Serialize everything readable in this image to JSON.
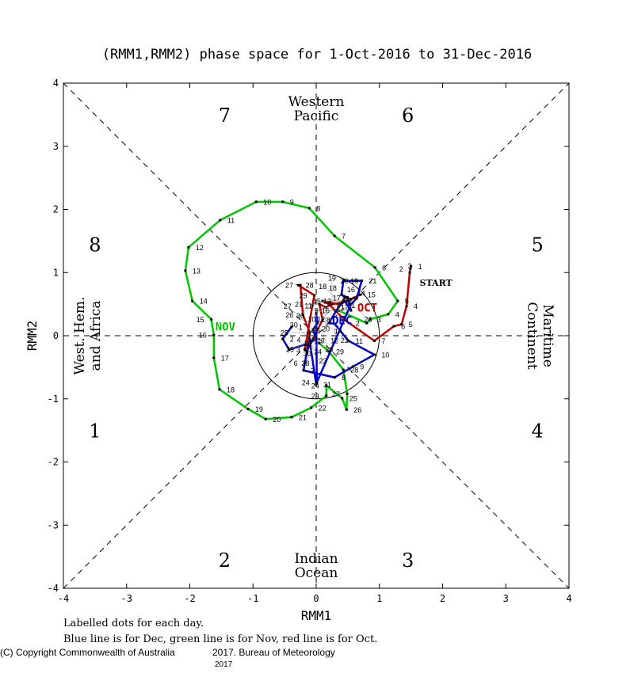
{
  "chart_data": {
    "type": "line",
    "title": "(RMM1,RMM2) phase space for  1-Oct-2016 to 31-Dec-2016",
    "xlabel": "RMM1",
    "ylabel": "RMM2",
    "xlim": [
      -4,
      4
    ],
    "ylim": [
      -4,
      4
    ],
    "ticks": [
      -4,
      -3,
      -2,
      -1,
      0,
      1,
      2,
      3,
      4
    ],
    "tick_labels": [
      "-4",
      "-3",
      "-2",
      "-1",
      "0",
      "1",
      "2",
      "3",
      "4"
    ],
    "phase_labels": {
      "p1": "1",
      "p2": "2",
      "p3": "3",
      "p4": "4",
      "p5": "5",
      "p6": "6",
      "p7": "7",
      "p8": "8"
    },
    "region_labels": {
      "top1": "Western",
      "top2": "Pacific",
      "bottom1": "Indian",
      "bottom2": "Ocean",
      "left1": "West. Hem.",
      "left2": "and Africa",
      "right1": "Maritime",
      "right2": "Continent"
    },
    "start_label": "START",
    "series": [
      {
        "name": "Oct",
        "month_label": "OCT",
        "color": "#c00000",
        "label_at": [
          0.5,
          0.45
        ],
        "points": [
          [
            1.5,
            1.1
          ],
          [
            1.49,
            1.06
          ],
          [
            1.48,
            1.0
          ],
          [
            1.43,
            0.47
          ],
          [
            1.35,
            0.18
          ],
          [
            1.23,
            0.15
          ],
          [
            0.92,
            -0.08
          ],
          [
            0.45,
            0.25
          ],
          [
            0.3,
            0.4
          ],
          [
            0.2,
            0.5
          ],
          [
            0.1,
            0.55
          ],
          [
            0.35,
            0.5
          ],
          [
            0.5,
            0.55
          ],
          [
            0.6,
            0.6
          ],
          [
            0.7,
            0.65
          ],
          [
            0.55,
            0.58
          ],
          [
            0.45,
            0.6
          ],
          [
            0.4,
            0.52
          ],
          [
            0.25,
            0.5
          ],
          [
            0.15,
            0.45
          ],
          [
            0.05,
            0.5
          ],
          [
            0.1,
            0.25
          ],
          [
            -0.05,
            -0.05
          ],
          [
            -0.15,
            -0.25
          ],
          [
            -0.1,
            0.05
          ],
          [
            -0.21,
            0.33
          ],
          [
            -0.25,
            0.8
          ],
          [
            -0.28,
            0.8
          ],
          [
            -0.03,
            0.64
          ],
          [
            -0.06,
            0.48
          ],
          [
            -0.18,
            -0.22
          ]
        ]
      },
      {
        "name": "Nov",
        "month_label": "NOV",
        "color": "#00c800",
        "label_at": [
          -1.75,
          0.15
        ],
        "points": [
          [
            0.35,
            0.4
          ],
          [
            0.8,
            0.2
          ],
          [
            0.85,
            0.26
          ],
          [
            1.14,
            0.34
          ],
          [
            1.29,
            0.55
          ],
          [
            0.93,
            1.08
          ],
          [
            0.29,
            1.58
          ],
          [
            -0.11,
            2.02
          ],
          [
            -0.53,
            2.12
          ],
          [
            -0.95,
            2.12
          ],
          [
            -1.52,
            1.83
          ],
          [
            -2.02,
            1.4
          ],
          [
            -2.07,
            1.03
          ],
          [
            -1.96,
            0.55
          ],
          [
            -1.66,
            0.26
          ],
          [
            -1.62,
            0.01
          ],
          [
            -1.62,
            -0.35
          ],
          [
            -1.53,
            -0.85
          ],
          [
            -1.08,
            -1.16
          ],
          [
            -0.8,
            -1.32
          ],
          [
            -0.39,
            -1.29
          ],
          [
            -0.08,
            -1.14
          ],
          [
            0.16,
            -0.95
          ],
          [
            0.16,
            -0.79
          ],
          [
            0.41,
            -0.99
          ],
          [
            0.48,
            -1.17
          ],
          [
            0.49,
            -0.92
          ],
          [
            0.43,
            -0.54
          ],
          [
            0.2,
            -0.25
          ],
          [
            0.05,
            -0.12
          ]
        ]
      },
      {
        "name": "Dec",
        "month_label": "DEC",
        "color": "#0000c8",
        "label_at": [
          0.1,
          0.25
        ],
        "points": [
          [
            -0.39,
            0.14
          ],
          [
            -0.53,
            -0.05
          ],
          [
            -0.43,
            -0.22
          ],
          [
            -0.18,
            -0.14
          ],
          [
            -0.12,
            -0.12
          ],
          [
            -0.18,
            -0.43
          ],
          [
            -0.2,
            -0.55
          ],
          [
            0.29,
            -0.66
          ],
          [
            0.58,
            -0.49
          ],
          [
            0.92,
            -0.3
          ],
          [
            0.51,
            -0.08
          ],
          [
            0.29,
            0.19
          ],
          [
            0.2,
            0.2
          ],
          [
            0.35,
            0.45
          ],
          [
            0.45,
            0.55
          ],
          [
            0.55,
            0.4
          ],
          [
            0.5,
            0.6
          ],
          [
            0.4,
            0.65
          ],
          [
            0.43,
            0.87
          ],
          [
            0.62,
            0.87
          ],
          [
            0.72,
            0.87
          ],
          [
            0.64,
            0.59
          ],
          [
            0.55,
            0.5
          ],
          [
            0.01,
            -0.74
          ],
          [
            0.0,
            0.35
          ],
          [
            0.02,
            0.2
          ],
          [
            -0.05,
            0.1
          ],
          [
            0.0,
            -0.05
          ],
          [
            -0.08,
            -0.1
          ],
          [
            -0.11,
            -0.04
          ],
          [
            0.0,
            -0.77
          ]
        ]
      }
    ],
    "circle_radius": 1,
    "grid": false
  },
  "footer": {
    "line1": "Labelled dots for each day.",
    "line2": "Blue line is for Dec, green line is for Nov, red line is for Oct.",
    "copyright": "(C) Copyright Commonwealth of Australia",
    "copyright2": "2017. Bureau of Meteorology",
    "year": "2017"
  }
}
